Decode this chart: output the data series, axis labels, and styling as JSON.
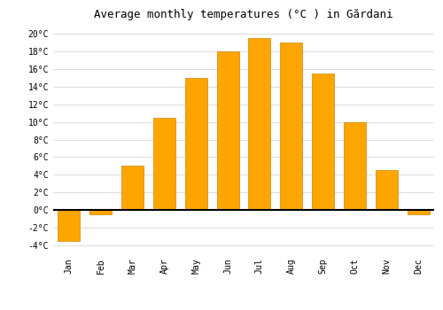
{
  "title": "Average monthly temperatures (°C ) in Gărdani",
  "months": [
    "Jan",
    "Feb",
    "Mar",
    "Apr",
    "May",
    "Jun",
    "Jul",
    "Aug",
    "Sep",
    "Oct",
    "Nov",
    "Dec"
  ],
  "temperatures": [
    -3.5,
    -0.5,
    5.0,
    10.5,
    15.0,
    18.0,
    19.5,
    19.0,
    15.5,
    10.0,
    4.5,
    -0.5
  ],
  "bar_color": "#FFA500",
  "bar_edge_color": "#CC8800",
  "ylim": [
    -5,
    21
  ],
  "yticks": [
    -4,
    -2,
    0,
    2,
    4,
    6,
    8,
    10,
    12,
    14,
    16,
    18,
    20
  ],
  "ytick_labels": [
    "-4°C",
    "-2°C",
    "0°C",
    "2°C",
    "4°C",
    "6°C",
    "8°C",
    "10°C",
    "12°C",
    "14°C",
    "16°C",
    "18°C",
    "20°C"
  ],
  "background_color": "#ffffff",
  "grid_color": "#e0e0e0",
  "title_fontsize": 9,
  "tick_fontsize": 7,
  "font_family": "monospace"
}
